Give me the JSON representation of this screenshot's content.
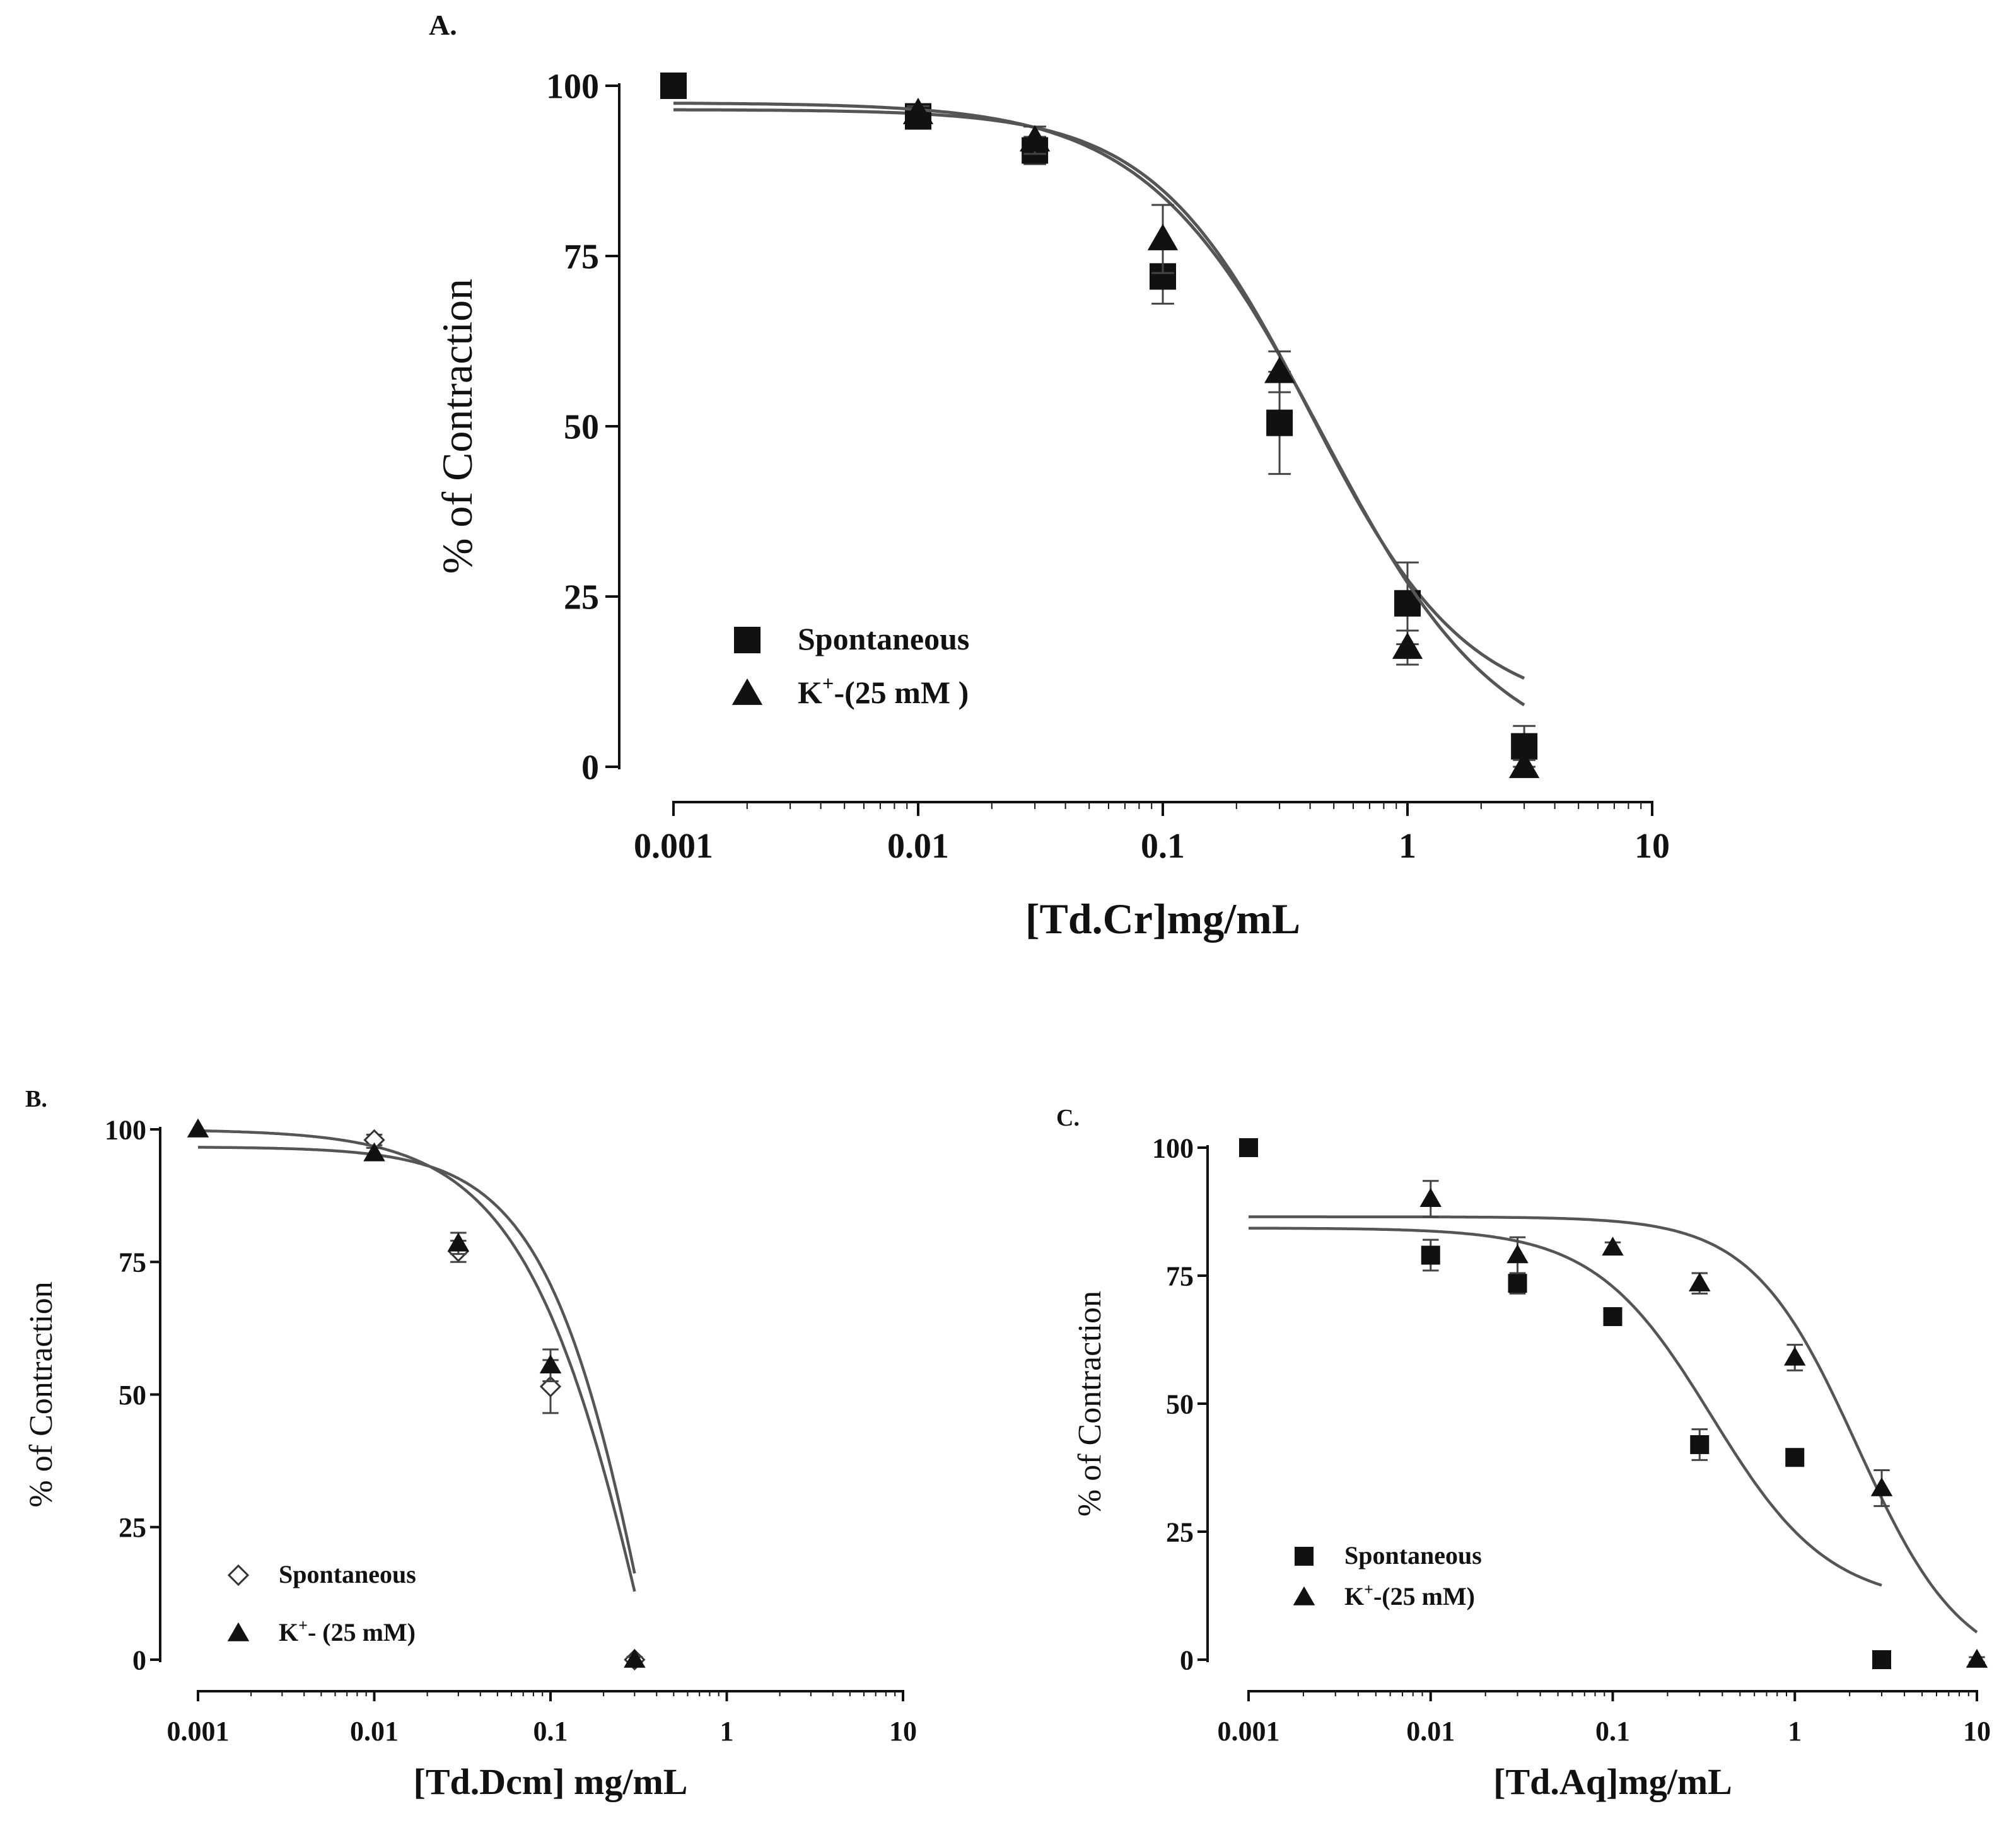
{
  "chart_data": [
    {
      "panel_label": "A.",
      "type": "scatter",
      "x_scale": "log",
      "xlim": [
        0.001,
        10
      ],
      "ylim": [
        0,
        100
      ],
      "xticks": [
        0.001,
        0.01,
        0.1,
        1,
        10
      ],
      "xtick_labels": [
        "0.001",
        "0.01",
        "0.1",
        "1",
        "10"
      ],
      "yticks": [
        0,
        25,
        50,
        75,
        100
      ],
      "ytick_labels": [
        "0",
        "25",
        "50",
        "75",
        "100"
      ],
      "xlabel": "[Td.Cr]mg/mL",
      "ylabel": "% of Contraction",
      "legend_position": "bottom-left",
      "series": [
        {
          "name": "Spontaneous",
          "legend_main": "Spontaneous",
          "legend_sup": "",
          "legend_rest": "",
          "marker": "square-filled",
          "x": [
            0.001,
            0.01,
            0.03,
            0.1,
            0.3,
            1,
            3
          ],
          "y": [
            100,
            95.5,
            90.5,
            72,
            50.5,
            24,
            3
          ],
          "err": [
            0,
            1.5,
            2,
            4,
            7.5,
            6,
            3
          ],
          "fit": {
            "top": 96.5,
            "bottom": 7.5,
            "ic50": 0.4,
            "hill": 1.35,
            "range": [
              0.001,
              3
            ]
          }
        },
        {
          "name": "K+-(25 mM )",
          "legend_main": "K",
          "legend_sup": "+",
          "legend_rest": "-(25 mM )",
          "marker": "triangle-filled",
          "x": [
            0.01,
            0.03,
            0.1,
            0.3,
            1,
            3
          ],
          "y": [
            96,
            92,
            77.5,
            58,
            17.5,
            0
          ],
          "err": [
            1,
            2,
            5,
            3,
            2.5,
            1
          ],
          "fit": {
            "top": 97.5,
            "bottom": 0,
            "ic50": 0.45,
            "hill": 1.2,
            "range": [
              0.001,
              3
            ]
          }
        }
      ]
    },
    {
      "panel_label": "B.",
      "type": "scatter",
      "x_scale": "log",
      "xlim": [
        0.001,
        10
      ],
      "ylim": [
        0,
        100
      ],
      "xticks": [
        0.001,
        0.01,
        0.1,
        1,
        10
      ],
      "xtick_labels": [
        "0.001",
        "0.01",
        "0.1",
        "1",
        "10"
      ],
      "yticks": [
        0,
        25,
        50,
        75,
        100
      ],
      "ytick_labels": [
        "0",
        "25",
        "50",
        "75",
        "100"
      ],
      "xlabel": "[Td.Dcm] mg/mL",
      "ylabel": "% of Contraction",
      "legend_position": "bottom-left",
      "series": [
        {
          "name": "Spontaneous",
          "legend_main": "Spontaneous",
          "legend_sup": "",
          "legend_rest": "",
          "marker": "diamond-open",
          "x": [
            0.01,
            0.03,
            0.1,
            0.3
          ],
          "y": [
            98,
            77,
            51.5,
            0
          ],
          "err": [
            1,
            2,
            5,
            0.5
          ],
          "fit": {
            "top": 96.7,
            "bottom": -140,
            "ic50": 0.5,
            "hill": 1.3,
            "range": [
              0.001,
              0.3
            ]
          }
        },
        {
          "name": "K+- (25 mM)",
          "legend_main": "K",
          "legend_sup": "+",
          "legend_rest": "- (25 mM)",
          "marker": "triangle-filled",
          "x": [
            0.001,
            0.01,
            0.03,
            0.1,
            0.3
          ],
          "y": [
            100,
            95.5,
            78.5,
            55.5,
            0
          ],
          "err": [
            0,
            1,
            2,
            3,
            0.5
          ],
          "fit": {
            "top": 100,
            "bottom": -140,
            "ic50": 0.5,
            "hill": 1.1,
            "range": [
              0.001,
              0.3
            ]
          }
        }
      ]
    },
    {
      "panel_label": "C.",
      "type": "scatter",
      "x_scale": "log",
      "xlim": [
        0.001,
        10
      ],
      "ylim": [
        0,
        100
      ],
      "xticks": [
        0.001,
        0.01,
        0.1,
        1,
        10
      ],
      "xtick_labels": [
        "0.001",
        "0.01",
        "0.1",
        "1",
        "10"
      ],
      "yticks": [
        0,
        25,
        50,
        75,
        100
      ],
      "ytick_labels": [
        "0",
        "25",
        "50",
        "75",
        "100"
      ],
      "xlabel": "[Td.Aq]mg/mL",
      "ylabel": "% of Contraction",
      "legend_position": "bottom-left",
      "series": [
        {
          "name": "Spontaneous",
          "legend_main": "Spontaneous",
          "legend_sup": "",
          "legend_rest": "",
          "marker": "square-filled",
          "x": [
            0.001,
            0.01,
            0.03,
            0.1,
            0.3,
            1,
            3
          ],
          "y": [
            100,
            79,
            73.5,
            67,
            42,
            39.5,
            0
          ],
          "err": [
            0,
            3,
            2,
            1,
            3,
            1,
            0.5
          ],
          "fit": {
            "top": 84.3,
            "bottom": 10.7,
            "ic50": 0.35,
            "hill": 1.35,
            "range": [
              0.001,
              3
            ]
          }
        },
        {
          "name": "K+-(25 mM)",
          "legend_main": "K",
          "legend_sup": "+",
          "legend_rest": "-(25 mM)",
          "marker": "triangle-filled",
          "x": [
            0.01,
            0.03,
            0.1,
            0.3,
            1,
            3,
            10
          ],
          "y": [
            90,
            79,
            80.5,
            73.5,
            59,
            33.5,
            0
          ],
          "err": [
            3.5,
            3.5,
            1,
            2,
            2.5,
            3.5,
            0.5
          ],
          "fit": {
            "top": 86.5,
            "bottom": -3,
            "ic50": 2.2,
            "hill": 1.5,
            "range": [
              0.001,
              10
            ]
          }
        }
      ]
    }
  ]
}
